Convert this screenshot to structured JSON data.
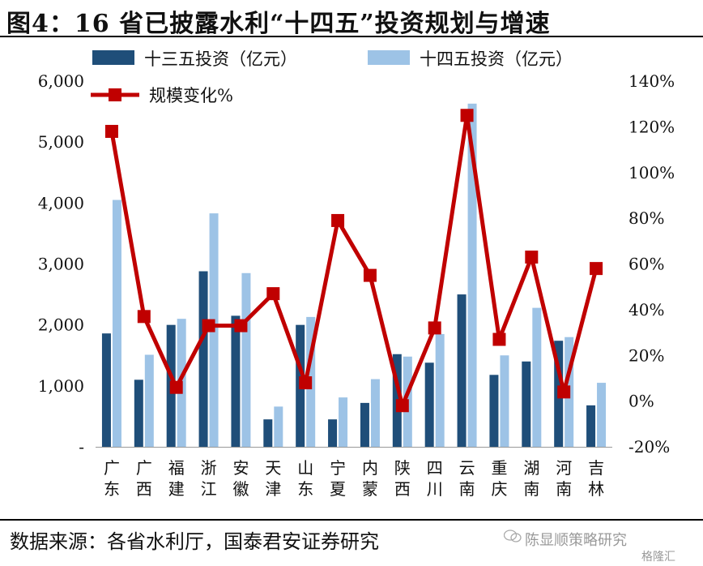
{
  "title": "图4：16 省已披露水利“十四五”投资规划与增速",
  "source": "数据来源：各省水利厅，国泰君安证券研究",
  "watermark": "陈显顺策略研究",
  "watermark_logo": "格隆汇",
  "colors": {
    "series1": "#1f4e79",
    "series2": "#9dc3e6",
    "line": "#c00000"
  },
  "chart_data": {
    "type": "bar",
    "categories": [
      "广东",
      "广西",
      "福建",
      "浙江",
      "安徽",
      "天津",
      "山东",
      "宁夏",
      "内蒙",
      "陕西",
      "四川",
      "云南",
      "重庆",
      "湖南",
      "河南",
      "吉林"
    ],
    "series": [
      {
        "name": "十三五投资（亿元）",
        "axis": "left",
        "values": [
          1860,
          1100,
          2000,
          2880,
          2150,
          450,
          2000,
          450,
          720,
          1520,
          1380,
          2500,
          1180,
          1400,
          1740,
          680
        ]
      },
      {
        "name": "十四五投资（亿元）",
        "axis": "left",
        "values": [
          4050,
          1510,
          2100,
          3830,
          2850,
          660,
          2130,
          810,
          1110,
          1480,
          1850,
          5630,
          1500,
          2280,
          1800,
          1050
        ]
      },
      {
        "name": "规模变化%",
        "type": "line",
        "axis": "right",
        "values": [
          118,
          37,
          6,
          33,
          33,
          47,
          8,
          79,
          55,
          -2,
          32,
          125,
          27,
          63,
          4,
          58
        ]
      }
    ],
    "y_left": {
      "min": 0,
      "max": 6000,
      "ticks": [
        "-",
        "1,000",
        "2,000",
        "3,000",
        "4,000",
        "5,000",
        "6,000"
      ]
    },
    "y_right": {
      "min": -20,
      "max": 140,
      "ticks": [
        "-20%",
        "0%",
        "20%",
        "40%",
        "60%",
        "80%",
        "100%",
        "120%",
        "140%"
      ]
    },
    "legend": [
      "十三五投资（亿元）",
      "十四五投资（亿元）",
      "规模变化%"
    ],
    "legend_position": "top"
  }
}
